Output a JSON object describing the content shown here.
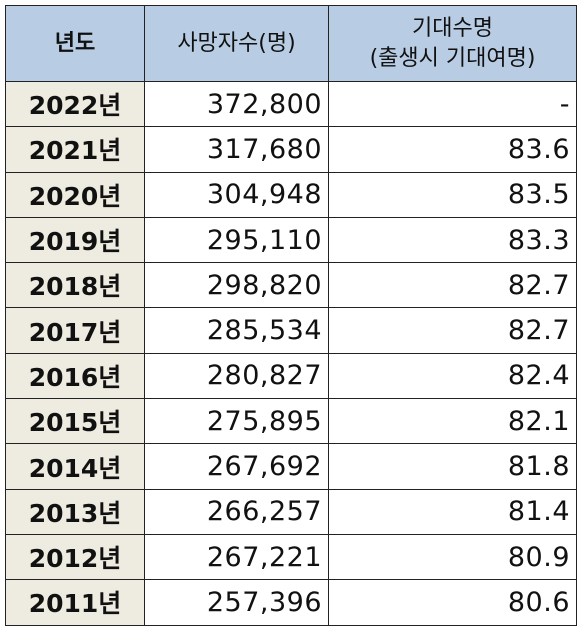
{
  "table": {
    "headers": {
      "year": "년도",
      "deaths": "사망자수(명)",
      "life_line1": "기대수명",
      "life_line2": "(출생시 기대여명)"
    },
    "rows": [
      {
        "year": "2022년",
        "deaths": "372,800",
        "life": "-"
      },
      {
        "year": "2021년",
        "deaths": "317,680",
        "life": "83.6"
      },
      {
        "year": "2020년",
        "deaths": "304,948",
        "life": "83.5"
      },
      {
        "year": "2019년",
        "deaths": "295,110",
        "life": "83.3"
      },
      {
        "year": "2018년",
        "deaths": "298,820",
        "life": "82.7"
      },
      {
        "year": "2017년",
        "deaths": "285,534",
        "life": "82.7"
      },
      {
        "year": "2016년",
        "deaths": "280,827",
        "life": "82.4"
      },
      {
        "year": "2015년",
        "deaths": "275,895",
        "life": "82.1"
      },
      {
        "year": "2014년",
        "deaths": "267,692",
        "life": "81.8"
      },
      {
        "year": "2013년",
        "deaths": "266,257",
        "life": "81.4"
      },
      {
        "year": "2012년",
        "deaths": "267,221",
        "life": "80.9"
      },
      {
        "year": "2011년",
        "deaths": "257,396",
        "life": "80.6"
      }
    ]
  },
  "colors": {
    "header_bg": "#b8cce4",
    "year_col_bg": "#eeece1",
    "border": "#222222"
  }
}
